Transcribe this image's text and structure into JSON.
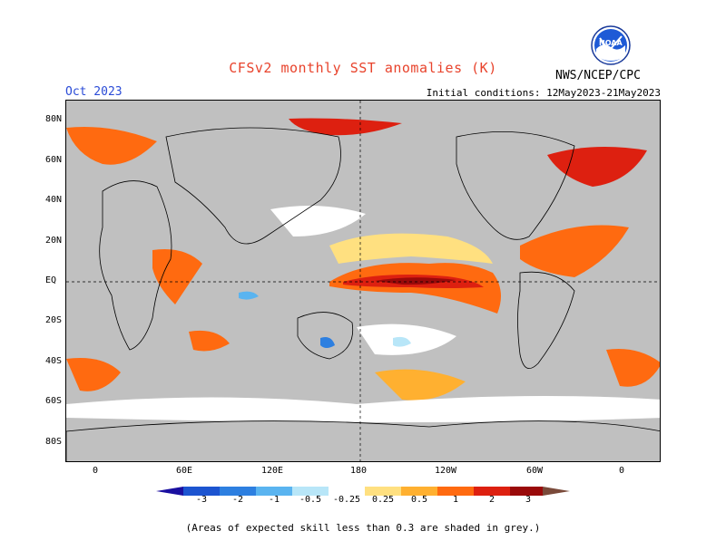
{
  "title": "CFSv2 monthly SST anomalies (K)",
  "month": "Oct 2023",
  "initial_conditions": "Initial conditions: 12May2023-21May2023",
  "agency": "NWS/NCEP/CPC",
  "logo_text": "NOAA",
  "lat_labels": [
    "80N",
    "60N",
    "40N",
    "20N",
    "EQ",
    "20S",
    "40S",
    "60S",
    "80S"
  ],
  "lon_labels": [
    "0",
    "60E",
    "120E",
    "180",
    "120W",
    "60W",
    "0"
  ],
  "colorbar": {
    "labels": [
      "-3",
      "-2",
      "-1",
      "-0.5",
      "-0.25",
      "0.25",
      "0.5",
      "1",
      "2",
      "3"
    ],
    "colors": [
      "#1a0fa0",
      "#1c54d0",
      "#2d7fe0",
      "#5ab4f0",
      "#b8e6f8",
      "#ffffff",
      "#ffe080",
      "#ffb030",
      "#ff6a10",
      "#dd2010",
      "#9a0a0a",
      "#7a4a3a"
    ]
  },
  "footnote": "(Areas of expected skill less than 0.3 are shaded in grey.)",
  "colors": {
    "grey_skill": "#c0c0c0",
    "title": "#e8432c",
    "month": "#2a4bd7"
  }
}
